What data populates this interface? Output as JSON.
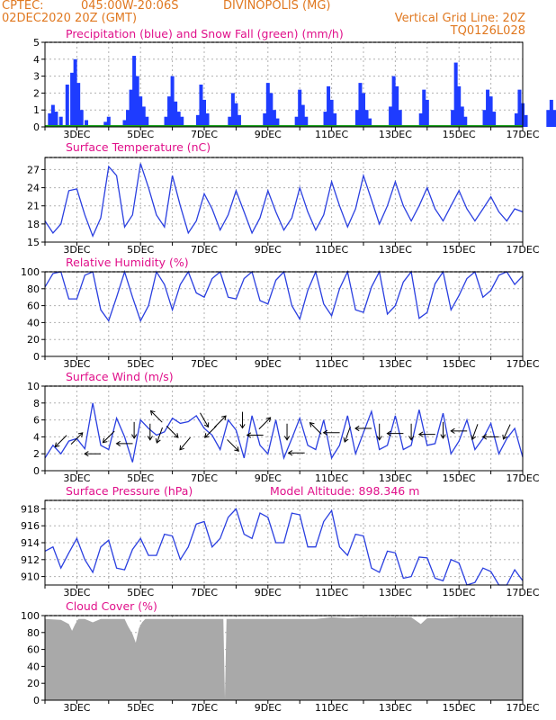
{
  "header": {
    "line1_left": "CPTEC:",
    "line1_coords": "045:00W-20:06S",
    "line1_place": "DIVINOPOLIS (MG)",
    "line2_left": "02DEC2020 20Z (GMT)",
    "line2_right": "Vertical Grid Line: 20Z",
    "line3_right": "TQ0126L028"
  },
  "colors": {
    "header": "#e07820",
    "title": "#e0108a",
    "line": "#2a3fe0",
    "precip": "#1e3cff",
    "snow": "#18a018",
    "cloud": "#a9a9a9",
    "wind_arrow": "#000000"
  },
  "x_axis": {
    "tick_labels": [
      "3DEC",
      "5DEC",
      "7DEC",
      "9DEC",
      "11DEC",
      "13DEC",
      "15DEC",
      "17DEC"
    ]
  },
  "chart_data": [
    {
      "id": "precip",
      "type": "bar",
      "title": "Precipitation (blue) and Snow Fall (green) (mm/h)",
      "ylim": [
        0,
        5
      ],
      "yticks": [
        "0",
        "1",
        "2",
        "3",
        "4",
        "5"
      ],
      "series": [
        {
          "values": [
            [
              0.15,
              0.8
            ],
            [
              0.25,
              1.3
            ],
            [
              0.35,
              0.9
            ],
            [
              0.5,
              0.6
            ],
            [
              0.7,
              2.5
            ],
            [
              0.85,
              3.2
            ],
            [
              0.95,
              4.0
            ],
            [
              1.05,
              2.6
            ],
            [
              1.15,
              1.0
            ],
            [
              1.3,
              0.4
            ],
            [
              1.9,
              0.3
            ],
            [
              2.0,
              0.6
            ],
            [
              2.5,
              0.4
            ],
            [
              2.6,
              1.0
            ],
            [
              2.7,
              2.2
            ],
            [
              2.8,
              4.2
            ],
            [
              2.9,
              3.0
            ],
            [
              3.0,
              1.8
            ],
            [
              3.1,
              1.2
            ],
            [
              3.2,
              0.6
            ],
            [
              3.8,
              0.6
            ],
            [
              3.9,
              1.8
            ],
            [
              4.0,
              3.0
            ],
            [
              4.1,
              1.5
            ],
            [
              4.2,
              0.9
            ],
            [
              4.3,
              0.6
            ],
            [
              4.8,
              0.7
            ],
            [
              4.9,
              2.5
            ],
            [
              5.0,
              1.6
            ],
            [
              5.1,
              0.8
            ],
            [
              5.8,
              0.6
            ],
            [
              5.9,
              2.0
            ],
            [
              6.0,
              1.4
            ],
            [
              6.1,
              0.7
            ],
            [
              6.9,
              0.8
            ],
            [
              7.0,
              2.6
            ],
            [
              7.1,
              2.0
            ],
            [
              7.2,
              1.0
            ],
            [
              7.3,
              0.5
            ],
            [
              7.9,
              0.6
            ],
            [
              8.0,
              2.2
            ],
            [
              8.1,
              1.3
            ],
            [
              8.2,
              0.6
            ],
            [
              8.8,
              0.9
            ],
            [
              8.9,
              2.4
            ],
            [
              9.0,
              1.6
            ],
            [
              9.1,
              0.8
            ],
            [
              9.8,
              1.0
            ],
            [
              9.9,
              2.6
            ],
            [
              10.0,
              2.0
            ],
            [
              10.1,
              1.0
            ],
            [
              10.2,
              0.5
            ],
            [
              10.85,
              1.2
            ],
            [
              10.95,
              3.0
            ],
            [
              11.05,
              2.4
            ],
            [
              11.15,
              1.0
            ],
            [
              11.8,
              0.8
            ],
            [
              11.9,
              2.2
            ],
            [
              12.0,
              1.6
            ],
            [
              12.8,
              1.0
            ],
            [
              12.9,
              3.8
            ],
            [
              13.0,
              2.4
            ],
            [
              13.1,
              1.2
            ],
            [
              13.2,
              0.6
            ],
            [
              13.8,
              1.0
            ],
            [
              13.9,
              2.2
            ],
            [
              14.0,
              1.8
            ],
            [
              14.1,
              0.9
            ],
            [
              14.8,
              0.8
            ],
            [
              14.9,
              2.2
            ],
            [
              15.0,
              1.4
            ],
            [
              15.1,
              0.7
            ],
            [
              15.8,
              1.0
            ],
            [
              15.9,
              1.6
            ],
            [
              16.0,
              1.0
            ],
            [
              16.1,
              0.5
            ],
            [
              16.7,
              0.7
            ],
            [
              16.85,
              1.6
            ],
            [
              16.95,
              1.0
            ]
          ]
        }
      ]
    },
    {
      "id": "temperature",
      "type": "line",
      "title": "Surface Temperature (nC)",
      "ylim": [
        15,
        29
      ],
      "yticks": [
        "15",
        "18",
        "21",
        "24",
        "27"
      ],
      "x": [
        0.0,
        0.25,
        0.5,
        0.75,
        1.0,
        1.25,
        1.5,
        1.75,
        2.0,
        2.25,
        2.5,
        2.75,
        3.0,
        3.25,
        3.5,
        3.75,
        4.0,
        4.25,
        4.5,
        4.75,
        5.0,
        5.25,
        5.5,
        5.75,
        6.0,
        6.25,
        6.5,
        6.75,
        7.0,
        7.25,
        7.5,
        7.75,
        8.0,
        8.25,
        8.5,
        8.75,
        9.0,
        9.25,
        9.5,
        9.75,
        10.0,
        10.25,
        10.5,
        10.75,
        11.0,
        11.25,
        11.5,
        11.75,
        12.0,
        12.25,
        12.5,
        12.75,
        13.0,
        13.25,
        13.5,
        13.75,
        14.0,
        14.25,
        14.5,
        14.75,
        15.0
      ],
      "values": [
        18.5,
        16.5,
        18.0,
        23.5,
        23.8,
        19.5,
        16.0,
        19.0,
        27.5,
        26.0,
        17.5,
        19.5,
        28.0,
        24.0,
        19.5,
        17.5,
        26.0,
        21.0,
        16.5,
        18.5,
        23.0,
        20.5,
        17.0,
        19.5,
        23.5,
        20.0,
        16.5,
        19.0,
        23.5,
        20.0,
        17.0,
        19.0,
        24.0,
        20.0,
        17.0,
        19.5,
        25.0,
        21.0,
        17.5,
        20.5,
        26.0,
        22.0,
        18.0,
        21.0,
        25.0,
        21.0,
        18.5,
        21.0,
        24.0,
        20.5,
        18.5,
        21.0,
        23.5,
        20.5,
        18.5,
        20.5,
        22.5,
        20.0,
        18.5,
        20.5,
        20.0
      ]
    },
    {
      "id": "humidity",
      "type": "line",
      "title": "Relative Humidity (%)",
      "ylim": [
        0,
        100
      ],
      "yticks": [
        "0",
        "20",
        "40",
        "60",
        "80",
        "100"
      ],
      "x": [
        0.0,
        0.25,
        0.5,
        0.75,
        1.0,
        1.25,
        1.5,
        1.75,
        2.0,
        2.25,
        2.5,
        2.75,
        3.0,
        3.25,
        3.5,
        3.75,
        4.0,
        4.25,
        4.5,
        4.75,
        5.0,
        5.25,
        5.5,
        5.75,
        6.0,
        6.25,
        6.5,
        6.75,
        7.0,
        7.25,
        7.5,
        7.75,
        8.0,
        8.25,
        8.5,
        8.75,
        9.0,
        9.25,
        9.5,
        9.75,
        10.0,
        10.25,
        10.5,
        10.75,
        11.0,
        11.25,
        11.5,
        11.75,
        12.0,
        12.25,
        12.5,
        12.75,
        13.0,
        13.25,
        13.5,
        13.75,
        14.0,
        14.25,
        14.5,
        14.75,
        15.0
      ],
      "values": [
        82,
        98,
        100,
        68,
        68,
        96,
        100,
        55,
        42,
        70,
        100,
        70,
        42,
        60,
        100,
        85,
        55,
        85,
        100,
        75,
        70,
        92,
        100,
        70,
        68,
        92,
        100,
        66,
        62,
        90,
        100,
        60,
        44,
        78,
        100,
        62,
        48,
        80,
        100,
        55,
        52,
        82,
        100,
        50,
        60,
        88,
        100,
        45,
        52,
        86,
        100,
        55,
        72,
        92,
        100,
        70,
        78,
        96,
        100,
        85,
        95
      ]
    },
    {
      "id": "wind",
      "type": "line",
      "title": "Surface Wind (m/s)",
      "ylim": [
        0,
        10
      ],
      "yticks": [
        "0",
        "2",
        "4",
        "6",
        "8",
        "10"
      ],
      "x": [
        0.0,
        0.25,
        0.5,
        0.75,
        1.0,
        1.25,
        1.5,
        1.75,
        2.0,
        2.25,
        2.5,
        2.75,
        3.0,
        3.25,
        3.5,
        3.75,
        4.0,
        4.25,
        4.5,
        4.75,
        5.0,
        5.25,
        5.5,
        5.75,
        6.0,
        6.25,
        6.5,
        6.75,
        7.0,
        7.25,
        7.5,
        7.75,
        8.0,
        8.25,
        8.5,
        8.75,
        9.0,
        9.25,
        9.5,
        9.75,
        10.0,
        10.25,
        10.5,
        10.75,
        11.0,
        11.25,
        11.5,
        11.75,
        12.0,
        12.25,
        12.5,
        12.75,
        13.0,
        13.25,
        13.5,
        13.75,
        14.0,
        14.25,
        14.5,
        14.75,
        15.0
      ],
      "values": [
        1.5,
        3.0,
        2.0,
        3.5,
        3.8,
        2.6,
        8.0,
        3.0,
        2.5,
        6.2,
        4.0,
        1.0,
        6.0,
        5.0,
        4.2,
        4.6,
        6.2,
        5.6,
        5.8,
        6.5,
        5.0,
        4.2,
        2.5,
        6.0,
        4.8,
        1.5,
        6.5,
        3.0,
        2.0,
        6.0,
        1.5,
        3.8,
        6.2,
        3.0,
        2.5,
        6.0,
        1.5,
        3.0,
        6.5,
        2.0,
        4.5,
        7.0,
        2.5,
        3.0,
        6.5,
        2.5,
        3.0,
        7.2,
        3.0,
        3.2,
        6.8,
        2.0,
        3.5,
        6.0,
        2.5,
        3.8,
        5.6,
        2.0,
        3.8,
        5.0,
        1.6
      ],
      "arrows": [
        [
          0.5,
          3.5,
          225
        ],
        [
          1.0,
          3.8,
          45
        ],
        [
          1.5,
          2.0,
          180
        ],
        [
          2.0,
          4.0,
          225
        ],
        [
          2.5,
          3.2,
          180
        ],
        [
          2.8,
          4.8,
          270
        ],
        [
          3.3,
          4.6,
          270
        ],
        [
          3.5,
          6.4,
          135
        ],
        [
          3.6,
          4.2,
          250
        ],
        [
          4.0,
          4.6,
          315
        ],
        [
          4.4,
          3.2,
          230
        ],
        [
          5.0,
          6.0,
          300
        ],
        [
          5.2,
          4.6,
          225
        ],
        [
          5.5,
          5.8,
          45
        ],
        [
          5.9,
          3.0,
          315
        ],
        [
          6.2,
          6.0,
          270
        ],
        [
          6.6,
          4.2,
          180
        ],
        [
          6.9,
          5.6,
          45
        ],
        [
          7.6,
          4.6,
          270
        ],
        [
          7.9,
          2.1,
          180
        ],
        [
          8.5,
          5.0,
          135
        ],
        [
          9.0,
          4.5,
          180
        ],
        [
          9.5,
          4.3,
          250
        ],
        [
          10.0,
          5.0,
          180
        ],
        [
          10.5,
          4.6,
          270
        ],
        [
          11.0,
          4.4,
          180
        ],
        [
          11.5,
          4.6,
          270
        ],
        [
          12.0,
          4.3,
          180
        ],
        [
          12.5,
          4.8,
          270
        ],
        [
          13.0,
          4.7,
          180
        ],
        [
          13.5,
          4.6,
          250
        ],
        [
          14.0,
          4.0,
          180
        ],
        [
          14.5,
          4.6,
          245
        ]
      ]
    },
    {
      "id": "pressure",
      "type": "line",
      "title": "Surface Pressure (hPa)",
      "annotation": "Model Altitude: 898.346 m",
      "ylim": [
        909,
        919
      ],
      "yticks": [
        "910",
        "912",
        "914",
        "916",
        "918"
      ],
      "x": [
        0.0,
        0.25,
        0.5,
        0.75,
        1.0,
        1.25,
        1.5,
        1.75,
        2.0,
        2.25,
        2.5,
        2.75,
        3.0,
        3.25,
        3.5,
        3.75,
        4.0,
        4.25,
        4.5,
        4.75,
        5.0,
        5.25,
        5.5,
        5.75,
        6.0,
        6.25,
        6.5,
        6.75,
        7.0,
        7.25,
        7.5,
        7.75,
        8.0,
        8.25,
        8.5,
        8.75,
        9.0,
        9.25,
        9.5,
        9.75,
        10.0,
        10.25,
        10.5,
        10.75,
        11.0,
        11.25,
        11.5,
        11.75,
        12.0,
        12.25,
        12.5,
        12.75,
        13.0,
        13.25,
        13.5,
        13.75,
        14.0,
        14.25,
        14.5,
        14.75,
        15.0
      ],
      "values": [
        913.0,
        913.5,
        911.0,
        912.8,
        914.5,
        912.0,
        910.5,
        913.5,
        914.3,
        911.0,
        910.8,
        913.2,
        914.5,
        912.5,
        912.5,
        915.0,
        914.8,
        912.0,
        913.5,
        916.2,
        916.5,
        913.5,
        914.5,
        917.0,
        918.0,
        915.0,
        914.5,
        917.5,
        917.0,
        914.0,
        914.0,
        917.5,
        917.3,
        913.5,
        913.5,
        916.5,
        917.8,
        913.5,
        912.5,
        915.0,
        914.8,
        911.0,
        910.5,
        913.0,
        912.8,
        909.8,
        910.0,
        912.3,
        912.2,
        909.8,
        909.5,
        912.0,
        911.6,
        909.0,
        909.3,
        911.0,
        910.6,
        909.0,
        909.0,
        910.8,
        909.5
      ]
    },
    {
      "id": "cloud",
      "type": "area",
      "title": "Cloud Cover (%)",
      "ylim": [
        0,
        100
      ],
      "yticks": [
        "0",
        "20",
        "40",
        "60",
        "80",
        "100"
      ],
      "x": [
        0.0,
        0.5,
        0.75,
        0.85,
        0.95,
        1.05,
        1.25,
        1.5,
        1.75,
        2.5,
        2.6,
        2.75,
        2.85,
        2.95,
        3.05,
        3.15,
        3.3,
        4.0,
        5.6,
        5.65,
        5.7,
        7.0,
        8.5,
        9.0,
        9.5,
        10.0,
        11.5,
        11.8,
        12.0,
        12.5,
        13.0,
        15.0
      ],
      "values": [
        96,
        95,
        90,
        82,
        90,
        96,
        96,
        92,
        96,
        96,
        88,
        78,
        68,
        85,
        92,
        96,
        96,
        96,
        96,
        2,
        96,
        96,
        96,
        98,
        97,
        98,
        98,
        90,
        97,
        97,
        98,
        98
      ]
    }
  ]
}
